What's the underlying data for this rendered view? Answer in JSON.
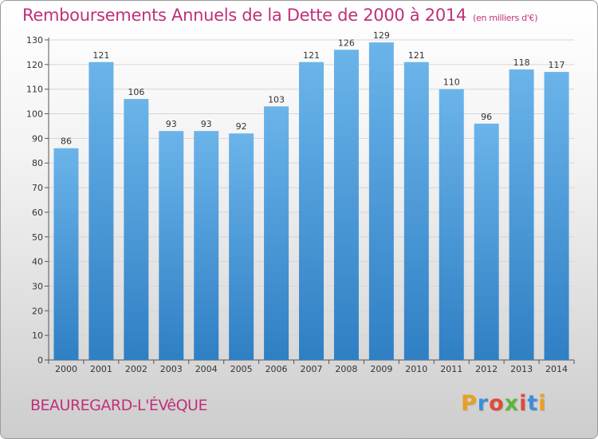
{
  "header": {
    "title": "Remboursements Annuels de la Dette de 2000 à 2014",
    "unit": "(en milliers d'€)"
  },
  "footer": {
    "commune": "BEAUREGARD-L'ÉVêQUE",
    "brand": "Proxiti",
    "brand_colors": [
      "#e8a020",
      "#3a8fd8",
      "#e04a3a",
      "#5cb53a",
      "#e04a3a",
      "#3a8fd8",
      "#e8a020"
    ]
  },
  "colors": {
    "bar_top": "#6bb4ea",
    "bar_bottom": "#2f7fc4",
    "accent": "#c0307a",
    "grid": "#d6d6d6"
  },
  "chart_data": {
    "type": "bar",
    "title": "Remboursements Annuels de la Dette de 2000 à 2014",
    "categories": [
      "2000",
      "2001",
      "2002",
      "2003",
      "2004",
      "2005",
      "2006",
      "2007",
      "2008",
      "2009",
      "2010",
      "2011",
      "2012",
      "2013",
      "2014"
    ],
    "values": [
      86,
      121,
      106,
      93,
      93,
      92,
      103,
      121,
      126,
      129,
      121,
      110,
      96,
      118,
      117
    ],
    "ylim": [
      0,
      130
    ],
    "yticks": [
      0,
      10,
      20,
      30,
      40,
      50,
      60,
      70,
      80,
      90,
      100,
      110,
      120,
      130
    ],
    "xlabel": "",
    "ylabel": "",
    "grid": true
  }
}
